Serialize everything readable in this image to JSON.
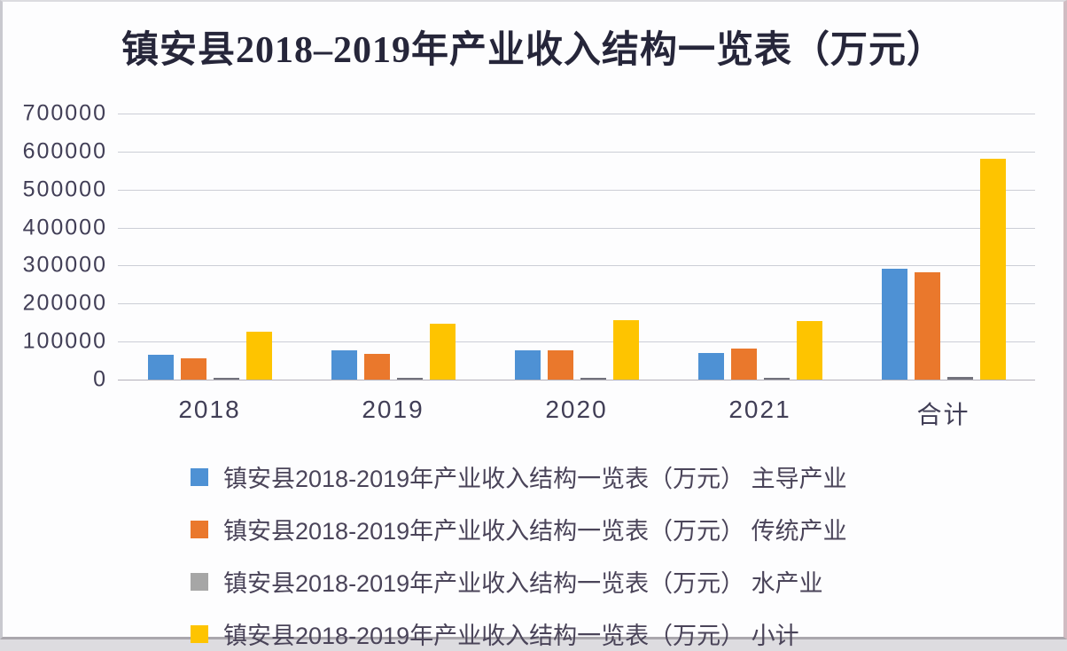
{
  "frame": {
    "background": "#fdfdfe",
    "border_left_color": "#c9c9cf",
    "border_top_color": "#dcdce0",
    "border_right_color": "#d0bcc2",
    "border_bottom_color": "#aaa7ad"
  },
  "chart_data": {
    "type": "bar",
    "title": "镇安县2018–2019年产业收入结构一览表（万元）",
    "title_color": "#26263a",
    "categories": [
      "2018",
      "2019",
      "2020",
      "2021",
      "合计"
    ],
    "series": [
      {
        "name": "镇安县2018-2019年产业收入结构一览表（万元） 主导产业",
        "color": "#4e91d4",
        "values": [
          66000,
          77000,
          77000,
          71000,
          291000
        ]
      },
      {
        "name": "镇安县2018-2019年产业收入结构一览表（万元） 传统产业",
        "color": "#ea782c",
        "values": [
          57000,
          67000,
          77000,
          81000,
          282000
        ]
      },
      {
        "name": "镇安县2018-2019年产业收入结构一览表（万元） 水产业",
        "color": "#a6a6a6",
        "values": [
          2000,
          2000,
          2000,
          2000,
          8000
        ]
      },
      {
        "name": "镇安县2018-2019年产业收入结构一览表（万元） 小计",
        "color": "#fec400",
        "values": [
          125000,
          146000,
          156000,
          154000,
          581000
        ]
      }
    ],
    "xlabel": "",
    "ylabel": "",
    "ylim": [
      0,
      700000
    ],
    "ytick_interval": 100000,
    "ytick_labels": [
      "0",
      "100000",
      "200000",
      "300000",
      "400000",
      "500000",
      "600000",
      "700000"
    ],
    "grid": true,
    "gridline_color": "#ccced6",
    "axis_line_color": "#b2b0ba",
    "axis_text_color": "#413e56",
    "legend_text_color": "#4a4459",
    "legend_position": "bottom-left",
    "tiny_bar_color": "#72727c"
  }
}
